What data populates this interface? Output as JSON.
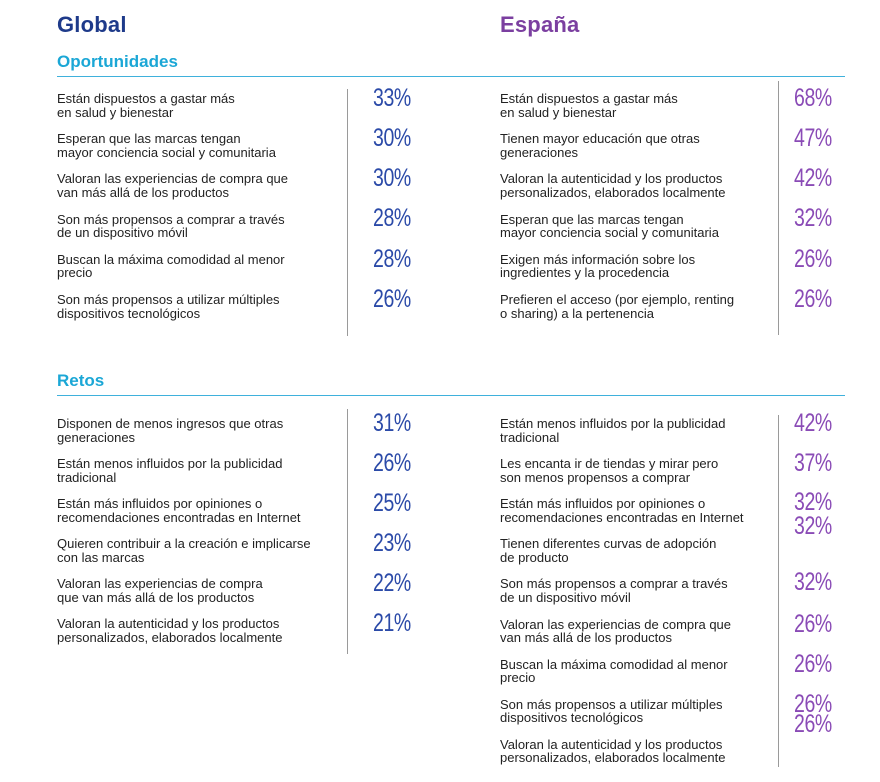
{
  "headers": {
    "global": "Global",
    "spain": "España"
  },
  "sections": {
    "opportunities": "Oportunidades",
    "challenges": "Retos"
  },
  "colors": {
    "global_title": "#1e3a8a",
    "spain_title": "#7b3fa0",
    "section": "#1ba7d6",
    "global_pct": "#2b4aa8",
    "spain_pct": "#8a4bb6"
  },
  "opp_global": [
    {
      "text": "Están dispuestos a gastar más\nen salud y bienestar",
      "pct": "33%"
    },
    {
      "text": "Esperan que las marcas tengan\nmayor conciencia social y comunitaria",
      "pct": "30%"
    },
    {
      "text": "Valoran las experiencias de compra que\nvan más allá de los productos",
      "pct": "30%"
    },
    {
      "text": "Son más propensos a comprar a través\nde un dispositivo móvil",
      "pct": "28%"
    },
    {
      "text": "Buscan la máxima comodidad al menor\nprecio",
      "pct": "28%"
    },
    {
      "text": "Son más propensos a utilizar múltiples\ndispositivos tecnológicos",
      "pct": "26%"
    }
  ],
  "opp_spain": [
    {
      "text": "Están dispuestos a gastar más\nen salud y bienestar",
      "pct": "68%"
    },
    {
      "text": "Tienen mayor educación que otras\ngeneraciones",
      "pct": "47%"
    },
    {
      "text": "Valoran la autenticidad y los productos\npersonalizados, elaborados localmente",
      "pct": "42%"
    },
    {
      "text": "Esperan que las marcas tengan\nmayor conciencia social y comunitaria",
      "pct": "32%"
    },
    {
      "text": "Exigen más información sobre los\ningredientes y la procedencia",
      "pct": "26%"
    },
    {
      "text": "Prefieren el acceso (por ejemplo, renting\no sharing) a la pertenencia",
      "pct": "26%"
    }
  ],
  "ret_global": [
    {
      "text": "Disponen de menos ingresos que otras\ngeneraciones",
      "pct": "31%"
    },
    {
      "text": "Están menos influidos por la publicidad\ntradicional",
      "pct": "26%"
    },
    {
      "text": "Están más influidos por opiniones o\nrecomendaciones encontradas en Internet",
      "pct": "25%"
    },
    {
      "text": "Quieren contribuir a la creación e implicarse\ncon las marcas",
      "pct": "23%"
    },
    {
      "text": "Valoran las experiencias de compra\nque van más allá de los productos",
      "pct": "22%"
    },
    {
      "text": "Valoran la autenticidad y los productos\npersonalizados, elaborados localmente",
      "pct": "21%"
    }
  ],
  "ret_spain": [
    {
      "text": "Están menos influidos por la publicidad\ntradicional",
      "pct": "42%"
    },
    {
      "text": "Les encanta ir de tiendas y mirar pero\nson menos propensos a comprar",
      "pct": "37%"
    },
    {
      "text": "Están más influidos por opiniones o\nrecomendaciones encontradas en Internet",
      "pct": "32%"
    },
    {
      "text": "Tienen diferentes curvas de adopción\nde producto",
      "pct": "32%"
    },
    {
      "text": "Son más propensos a comprar a través\nde un dispositivo móvil",
      "pct": "32%"
    },
    {
      "text": "Valoran las experiencias de compra que\nvan más allá de los productos",
      "pct": "26%"
    },
    {
      "text": "Buscan la máxima comodidad al menor\nprecio",
      "pct": "26%"
    },
    {
      "text": "Son más propensos a utilizar múltiples\ndispositivos tecnológicos",
      "pct": "26%"
    },
    {
      "text": "Valoran la autenticidad y los productos\npersonalizados, elaborados localmente",
      "pct": "26%"
    }
  ]
}
